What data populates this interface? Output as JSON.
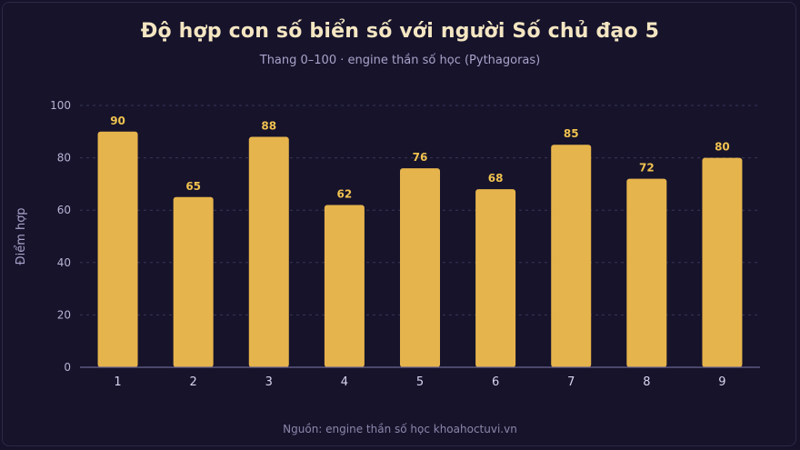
{
  "title": "Độ hợp con số biển số với người Số chủ đạo 5",
  "subtitle": "Thang 0–100 · engine thần số học (Pythagoras)",
  "source": "Nguồn: engine thần số học khoahoctuvi.vn",
  "colors": {
    "background": "#16132b",
    "bar": "#e6b44c",
    "data_label": "#f0c24f",
    "grid": "#3a3558",
    "axis": "#6b6590"
  },
  "chart_data": {
    "type": "bar",
    "title": "Độ hợp con số biển số với người Số chủ đạo 5",
    "subtitle": "Thang 0–100 · engine thần số học (Pythagoras)",
    "xlabel": "",
    "ylabel": "Điểm hợp",
    "categories": [
      "1",
      "2",
      "3",
      "4",
      "5",
      "6",
      "7",
      "8",
      "9"
    ],
    "values": [
      90,
      65,
      88,
      62,
      76,
      68,
      85,
      72,
      80
    ],
    "ylim": [
      0,
      100
    ],
    "yticks": [
      0,
      20,
      40,
      60,
      80,
      100
    ],
    "grid": true,
    "legend": "none"
  }
}
